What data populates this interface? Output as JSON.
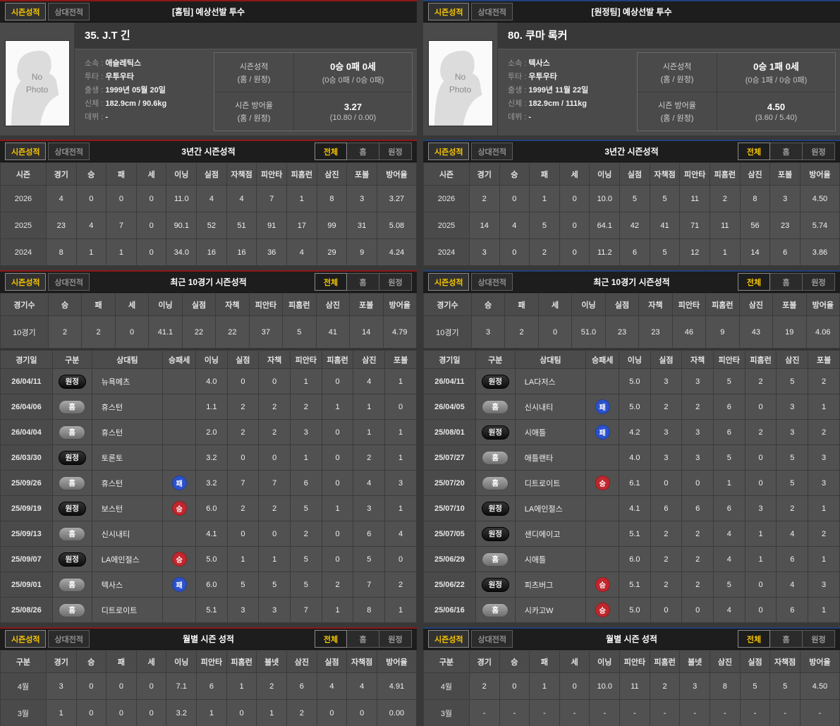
{
  "colors": {
    "home_accent": "#8e1717",
    "away_accent": "#22407e",
    "active_tab_text": "#f7c600",
    "win_badge": "#c1272d",
    "loss_badge": "#2b52cc"
  },
  "badge_classes": {
    "홈": "home",
    "원정": "away",
    "승": "win",
    "패": "loss"
  },
  "shared": {
    "section_tabs": [
      "시즌성적",
      "상대전적"
    ],
    "filter_tabs": [
      "전체",
      "홈",
      "원정"
    ],
    "titles": {
      "season3": "3년간 시즌성적",
      "recent10": "최근 10경기 시즌성적",
      "monthly": "월별 시즌 성적"
    }
  },
  "panels": [
    {
      "side": "home",
      "title": "[홈팀] 예상선발 투수",
      "player": {
        "photo_text": "No\nPhoto",
        "name": "35. J.T 긴",
        "details": [
          {
            "label": "소속",
            "value": "애슬레틱스"
          },
          {
            "label": "투타",
            "value": "우투우타"
          },
          {
            "label": "출생",
            "value": "1999년 05월 20일"
          },
          {
            "label": "신체",
            "value": "182.9cm / 90.6kg"
          },
          {
            "label": "데뷔",
            "value": "-"
          }
        ],
        "stats": [
          {
            "label": "시즌성적",
            "sublabel": "(홈 / 원정)",
            "value": "0승 0패 0세",
            "subvalue": "(0승 0패 / 0승 0패)"
          },
          {
            "label": "시즌 방어율",
            "sublabel": "(홈 / 원정)",
            "value": "3.27",
            "subvalue": "(10.80 / 0.00)"
          }
        ]
      },
      "season3": {
        "headers": [
          "시즌",
          "경기",
          "승",
          "패",
          "세",
          "이닝",
          "실점",
          "자책점",
          "피안타",
          "피홈런",
          "삼진",
          "포볼",
          "방어율"
        ],
        "rows": [
          [
            "2026",
            "4",
            "0",
            "0",
            "0",
            "11.0",
            "4",
            "4",
            "7",
            "1",
            "8",
            "3",
            "3.27"
          ],
          [
            "2025",
            "23",
            "4",
            "7",
            "0",
            "90.1",
            "52",
            "51",
            "91",
            "17",
            "99",
            "31",
            "5.08"
          ],
          [
            "2024",
            "8",
            "1",
            "1",
            "0",
            "34.0",
            "16",
            "16",
            "36",
            "4",
            "29",
            "9",
            "4.24"
          ]
        ]
      },
      "recent10": {
        "headers": [
          "경기수",
          "승",
          "패",
          "세",
          "이닝",
          "실점",
          "자책",
          "피안타",
          "피홈런",
          "삼진",
          "포볼",
          "방어율"
        ],
        "rows": [
          [
            "10경기",
            "2",
            "2",
            "0",
            "41.1",
            "22",
            "22",
            "37",
            "5",
            "41",
            "14",
            "4.79"
          ]
        ]
      },
      "gamelog": {
        "headers": [
          "경기일",
          "구분",
          "상대팀",
          "승패세",
          "이닝",
          "실점",
          "자책",
          "피안타",
          "피홈런",
          "삼진",
          "포볼"
        ],
        "venue_col": 1,
        "result_col": 3,
        "left_col": 2,
        "rows": [
          [
            "26/04/11",
            "원정",
            "뉴욕메츠",
            "",
            "4.0",
            "0",
            "0",
            "1",
            "0",
            "4",
            "1"
          ],
          [
            "26/04/06",
            "홈",
            "휴스턴",
            "",
            "1.1",
            "2",
            "2",
            "2",
            "1",
            "1",
            "0"
          ],
          [
            "26/04/04",
            "홈",
            "휴스턴",
            "",
            "2.0",
            "2",
            "2",
            "3",
            "0",
            "1",
            "1"
          ],
          [
            "26/03/30",
            "원정",
            "토론토",
            "",
            "3.2",
            "0",
            "0",
            "1",
            "0",
            "2",
            "1"
          ],
          [
            "25/09/26",
            "홈",
            "휴스턴",
            "패",
            "3.2",
            "7",
            "7",
            "6",
            "0",
            "4",
            "3"
          ],
          [
            "25/09/19",
            "원정",
            "보스턴",
            "승",
            "6.0",
            "2",
            "2",
            "5",
            "1",
            "3",
            "1"
          ],
          [
            "25/09/13",
            "홈",
            "신시내티",
            "",
            "4.1",
            "0",
            "0",
            "2",
            "0",
            "6",
            "4"
          ],
          [
            "25/09/07",
            "원정",
            "LA에인절스",
            "승",
            "5.0",
            "1",
            "1",
            "5",
            "0",
            "5",
            "0"
          ],
          [
            "25/09/01",
            "홈",
            "텍사스",
            "패",
            "6.0",
            "5",
            "5",
            "5",
            "2",
            "7",
            "2"
          ],
          [
            "25/08/26",
            "홈",
            "디트로이트",
            "",
            "5.1",
            "3",
            "3",
            "7",
            "1",
            "8",
            "1"
          ]
        ]
      },
      "monthly": {
        "headers": [
          "구분",
          "경기",
          "승",
          "패",
          "세",
          "이닝",
          "피안타",
          "피홈런",
          "볼넷",
          "삼진",
          "실점",
          "자책점",
          "방어율"
        ],
        "rows": [
          [
            "4월",
            "3",
            "0",
            "0",
            "0",
            "7.1",
            "6",
            "1",
            "2",
            "6",
            "4",
            "4",
            "4.91"
          ],
          [
            "3월",
            "1",
            "0",
            "0",
            "0",
            "3.2",
            "1",
            "0",
            "1",
            "2",
            "0",
            "0",
            "0.00"
          ]
        ]
      }
    },
    {
      "side": "away",
      "title": "[원정팀] 예상선발 투수",
      "player": {
        "photo_text": "No\nPhoto",
        "name": "80. 쿠마 록커",
        "details": [
          {
            "label": "소속",
            "value": "텍사스"
          },
          {
            "label": "투타",
            "value": "우투우타"
          },
          {
            "label": "출생",
            "value": "1999년 11월 22일"
          },
          {
            "label": "신체",
            "value": "182.9cm / 111kg"
          },
          {
            "label": "데뷔",
            "value": "-"
          }
        ],
        "stats": [
          {
            "label": "시즌성적",
            "sublabel": "(홈 / 원정)",
            "value": "0승 1패 0세",
            "subvalue": "(0승 1패 / 0승 0패)"
          },
          {
            "label": "시즌 방어율",
            "sublabel": "(홈 / 원정)",
            "value": "4.50",
            "subvalue": "(3.60 / 5.40)"
          }
        ]
      },
      "season3": {
        "headers": [
          "시즌",
          "경기",
          "승",
          "패",
          "세",
          "이닝",
          "실점",
          "자책점",
          "피안타",
          "피홈런",
          "삼진",
          "포볼",
          "방어율"
        ],
        "rows": [
          [
            "2026",
            "2",
            "0",
            "1",
            "0",
            "10.0",
            "5",
            "5",
            "11",
            "2",
            "8",
            "3",
            "4.50"
          ],
          [
            "2025",
            "14",
            "4",
            "5",
            "0",
            "64.1",
            "42",
            "41",
            "71",
            "11",
            "56",
            "23",
            "5.74"
          ],
          [
            "2024",
            "3",
            "0",
            "2",
            "0",
            "11.2",
            "6",
            "5",
            "12",
            "1",
            "14",
            "6",
            "3.86"
          ]
        ]
      },
      "recent10": {
        "headers": [
          "경기수",
          "승",
          "패",
          "세",
          "이닝",
          "실점",
          "자책",
          "피안타",
          "피홈런",
          "삼진",
          "포볼",
          "방어율"
        ],
        "rows": [
          [
            "10경기",
            "3",
            "2",
            "0",
            "51.0",
            "23",
            "23",
            "46",
            "9",
            "43",
            "19",
            "4.06"
          ]
        ]
      },
      "gamelog": {
        "headers": [
          "경기일",
          "구분",
          "상대팀",
          "승패세",
          "이닝",
          "실점",
          "자책",
          "피안타",
          "피홈런",
          "삼진",
          "포볼"
        ],
        "venue_col": 1,
        "result_col": 3,
        "left_col": 2,
        "rows": [
          [
            "26/04/11",
            "원정",
            "LA다저스",
            "",
            "5.0",
            "3",
            "3",
            "5",
            "2",
            "5",
            "2"
          ],
          [
            "26/04/05",
            "홈",
            "신시내티",
            "패",
            "5.0",
            "2",
            "2",
            "6",
            "0",
            "3",
            "1"
          ],
          [
            "25/08/01",
            "원정",
            "시애틀",
            "패",
            "4.2",
            "3",
            "3",
            "6",
            "2",
            "3",
            "2"
          ],
          [
            "25/07/27",
            "홈",
            "애틀랜타",
            "",
            "4.0",
            "3",
            "3",
            "5",
            "0",
            "5",
            "3"
          ],
          [
            "25/07/20",
            "홈",
            "디트로이트",
            "승",
            "6.1",
            "0",
            "0",
            "1",
            "0",
            "5",
            "3"
          ],
          [
            "25/07/10",
            "원정",
            "LA에인절스",
            "",
            "4.1",
            "6",
            "6",
            "6",
            "3",
            "2",
            "1"
          ],
          [
            "25/07/05",
            "원정",
            "샌디에이고",
            "",
            "5.1",
            "2",
            "2",
            "4",
            "1",
            "4",
            "2"
          ],
          [
            "25/06/29",
            "홈",
            "시애틀",
            "",
            "6.0",
            "2",
            "2",
            "4",
            "1",
            "6",
            "1"
          ],
          [
            "25/06/22",
            "원정",
            "피츠버그",
            "승",
            "5.1",
            "2",
            "2",
            "5",
            "0",
            "4",
            "3"
          ],
          [
            "25/06/16",
            "홈",
            "시카고W",
            "승",
            "5.0",
            "0",
            "0",
            "4",
            "0",
            "6",
            "1"
          ]
        ]
      },
      "monthly": {
        "headers": [
          "구분",
          "경기",
          "승",
          "패",
          "세",
          "이닝",
          "피안타",
          "피홈런",
          "볼넷",
          "삼진",
          "실점",
          "자책점",
          "방어율"
        ],
        "rows": [
          [
            "4월",
            "2",
            "0",
            "1",
            "0",
            "10.0",
            "11",
            "2",
            "3",
            "8",
            "5",
            "5",
            "4.50"
          ],
          [
            "3월",
            "-",
            "-",
            "-",
            "-",
            "-",
            "-",
            "-",
            "-",
            "-",
            "-",
            "-",
            "-"
          ]
        ]
      }
    }
  ]
}
